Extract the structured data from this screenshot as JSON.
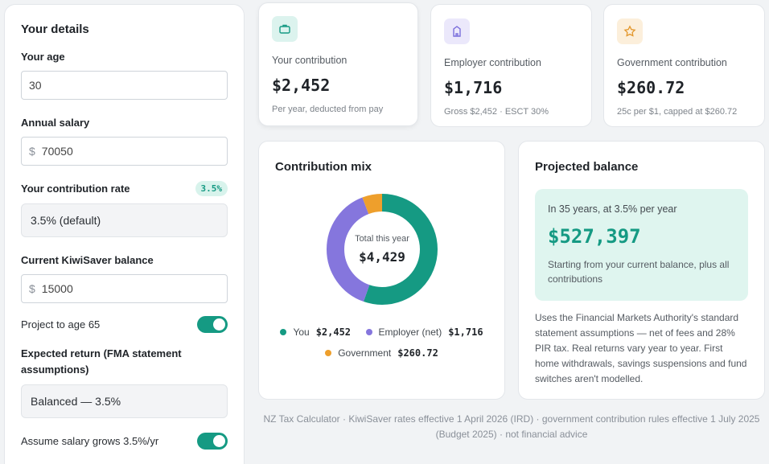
{
  "details": {
    "title": "Your details",
    "age_label": "Your age",
    "age_value": "30",
    "salary_label": "Annual salary",
    "currency_symbol": "$",
    "salary_value": "70050",
    "rate_label": "Your contribution rate",
    "rate_badge": "3.5%",
    "rate_value": "3.5% (default)",
    "balance_label": "Current KiwiSaver balance",
    "balance_value": "15000",
    "project_label": "Project to age 65",
    "project_on": true,
    "return_label": "Expected return (FMA statement assumptions)",
    "return_value": "Balanced — 3.5%",
    "salary_growth_label": "Assume salary grows 3.5%/yr",
    "salary_growth_on": true
  },
  "stats": [
    {
      "label": "Your contribution",
      "value": "$2,452",
      "sub": "Per year, deducted from pay",
      "icon": "briefcase-icon",
      "icon_bg": "#dcf3ee",
      "icon_color": "#159a83"
    },
    {
      "label": "Employer contribution",
      "value": "$1,716",
      "sub": "Gross $2,452 · ESCT 30%",
      "icon": "building-icon",
      "icon_bg": "#ebe8fb",
      "icon_color": "#7b6fdc"
    },
    {
      "label": "Government contribution",
      "value": "$260.72",
      "sub": "25c per $1, capped at $260.72",
      "icon": "star-icon",
      "icon_bg": "#fcefdb",
      "icon_color": "#e3962a"
    }
  ],
  "mix": {
    "title": "Contribution mix",
    "center_label": "Total this year",
    "center_value": "$4,429",
    "legend": [
      {
        "name": "You",
        "amount": "$2,452",
        "color": "#159a83"
      },
      {
        "name": "Employer (net)",
        "amount": "$1,716",
        "color": "#8576dd"
      },
      {
        "name": "Government",
        "amount": "$260.72",
        "color": "#ee9f2c"
      }
    ]
  },
  "chart_data": {
    "type": "pie",
    "categories": [
      "You",
      "Employer (net)",
      "Government"
    ],
    "values": [
      2452,
      1716,
      260.72
    ],
    "colors": [
      "#159a83",
      "#8576dd",
      "#ee9f2c"
    ],
    "title": "Contribution mix"
  },
  "projection": {
    "title": "Projected balance",
    "horizon": "In 35 years, at 3.5% per year",
    "value": "$527,397",
    "note": "Starting from your current balance, plus all contributions",
    "disclaimer": "Uses the Financial Markets Authority's standard statement assumptions — net of fees and 28% PIR tax. Real returns vary year to year. First home withdrawals, savings suspensions and fund switches aren't modelled."
  },
  "footer": "NZ Tax Calculator · KiwiSaver rates effective 1 April 2026 (IRD) · government contribution rules effective 1 July 2025 (Budget 2025) · not financial advice"
}
